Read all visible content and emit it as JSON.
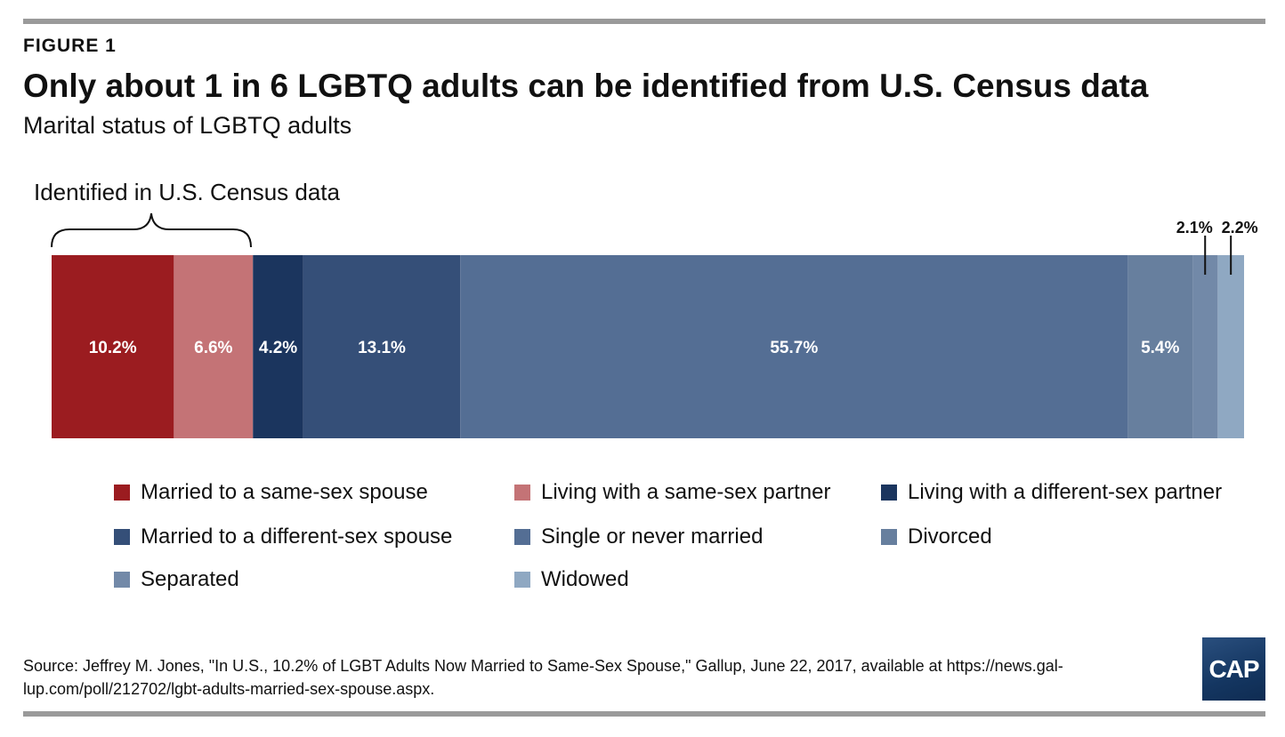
{
  "figure_label": "FIGURE 1",
  "title": "Only about 1 in 6 LGBTQ adults can be identified from U.S. Census data",
  "subtitle": "Marital status of LGBTQ adults",
  "annotation": "Identified in U.S. Census data",
  "source": "Source: Jeffrey M. Jones, \"In U.S., 10.2% of LGBT Adults Now Married to Same-Sex Spouse,\" Gallup, June 22, 2017, available at https://news.gal-lup.com/poll/212702/lgbt-adults-married-sex-spouse.aspx.",
  "logo_text": "CAP",
  "chart_data": {
    "type": "bar",
    "orientation": "horizontal-stacked",
    "categories": [
      "Married to a same-sex spouse",
      "Living with a same-sex partner",
      "Living with a different-sex partner",
      "Married to a different-sex spouse",
      "Single or never married",
      "Divorced",
      "Separated",
      "Widowed"
    ],
    "values": [
      10.2,
      6.6,
      4.2,
      13.1,
      55.7,
      5.4,
      2.1,
      2.2
    ],
    "data_labels": [
      "10.2%",
      "6.6%",
      "4.2%",
      "13.1%",
      "55.7%",
      "5.4%",
      "2.1%",
      "2.2%"
    ],
    "colors": [
      "#9b1c20",
      "#c47376",
      "#1b355e",
      "#354f78",
      "#546e94",
      "#677f9e",
      "#7289a8",
      "#8fa8c2"
    ],
    "title": "Only about 1 in 6 LGBTQ adults can be identified from U.S. Census data",
    "subtitle": "Marital status of LGBTQ adults",
    "legend_placement": "bottom",
    "grid": false
  }
}
